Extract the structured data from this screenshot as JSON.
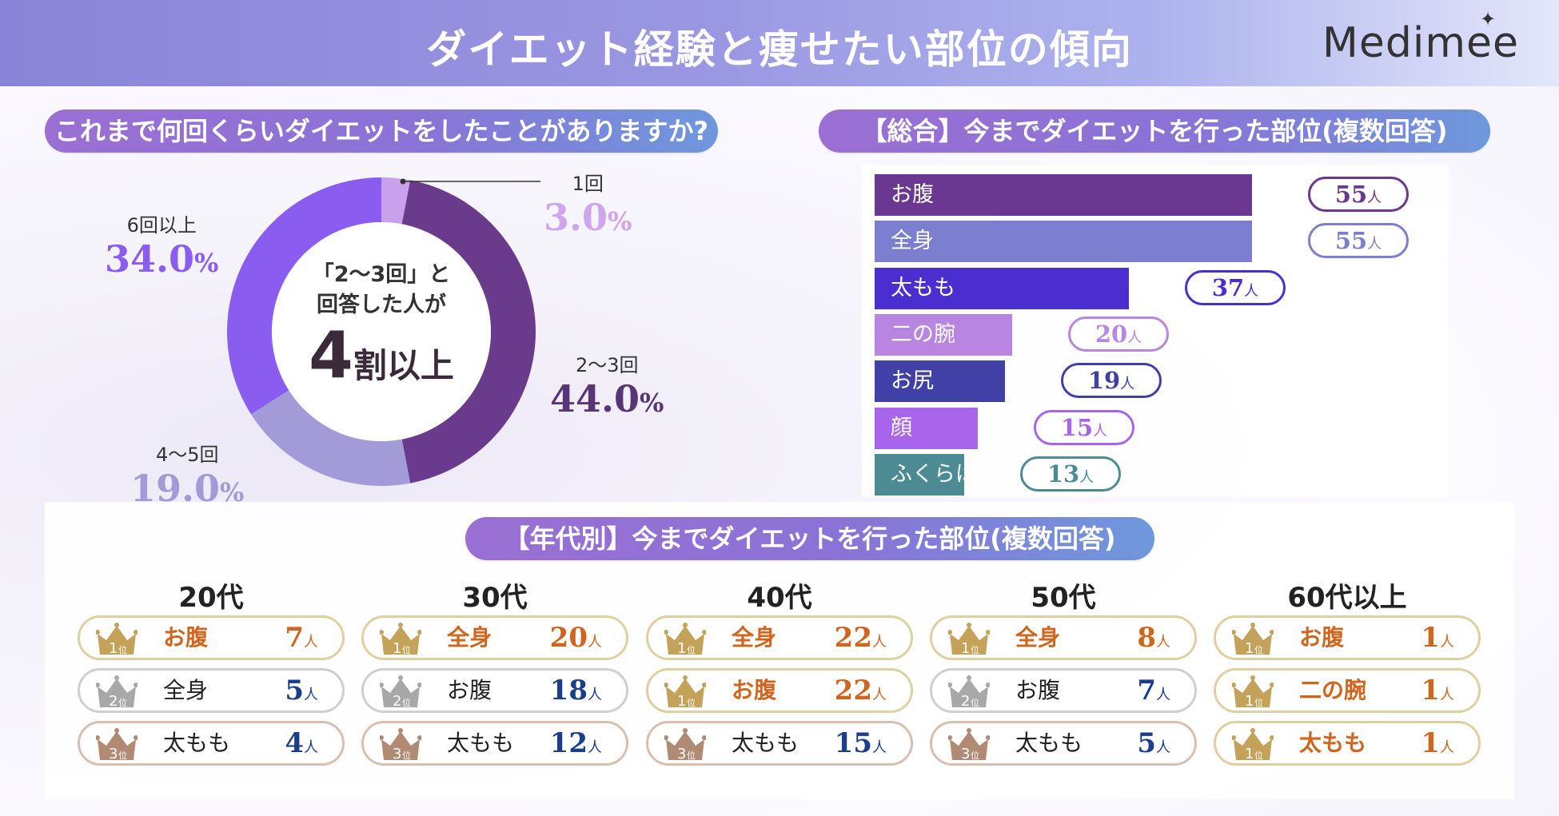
{
  "header": {
    "title": "ダイエット経験と痩せたい部位の傾向",
    "logo": "Medimee"
  },
  "q1": {
    "title": "これまで何回くらいダイエットをしたことがありますか?",
    "center_line1": "「2〜3回」と",
    "center_line2": "回答した人が",
    "center_big": "4",
    "center_big_suffix": "割以上",
    "slices": [
      {
        "label": "1回",
        "value": 3.0,
        "pct_text": "3.0",
        "color": "#c9a0ec"
      },
      {
        "label": "2〜3回",
        "value": 44.0,
        "pct_text": "44.0",
        "color": "#6a3a8c"
      },
      {
        "label": "4〜5回",
        "value": 19.0,
        "pct_text": "19.0",
        "color": "#a39ad8"
      },
      {
        "label": "6回以上",
        "value": 34.0,
        "pct_text": "34.0",
        "color": "#8a5cf0"
      }
    ],
    "unit": "%"
  },
  "q2": {
    "title": "【総合】今までダイエットを行った部位(複数回答)",
    "unit": "人"
  },
  "chart_data": [
    {
      "type": "pie",
      "categories": [
        "1回",
        "2〜3回",
        "4〜5回",
        "6回以上"
      ],
      "values": [
        3.0,
        44.0,
        19.0,
        34.0
      ]
    },
    {
      "type": "bar",
      "orientation": "horizontal",
      "categories": [
        "お腹",
        "全身",
        "太もも",
        "二の腕",
        "お尻",
        "顔",
        "ふくらはぎ"
      ],
      "values": [
        55,
        55,
        37,
        20,
        19,
        15,
        13
      ],
      "colors": [
        "#6a3891",
        "#7c7ed0",
        "#4a2ed0",
        "#b885e0",
        "#4040a6",
        "#a865ec",
        "#4c8b94"
      ]
    }
  ],
  "age": {
    "title": "【年代別】今までダイエットを行った部位(複数回答)",
    "rank_suffix": "位",
    "unit": "人",
    "groups": [
      {
        "name": "20代",
        "rows": [
          {
            "rank": "1",
            "part": "お腹",
            "count": "7"
          },
          {
            "rank": "2",
            "part": "全身",
            "count": "5"
          },
          {
            "rank": "3",
            "part": "太もも",
            "count": "4"
          }
        ]
      },
      {
        "name": "30代",
        "rows": [
          {
            "rank": "1",
            "part": "全身",
            "count": "20"
          },
          {
            "rank": "2",
            "part": "お腹",
            "count": "18"
          },
          {
            "rank": "3",
            "part": "太もも",
            "count": "12"
          }
        ]
      },
      {
        "name": "40代",
        "rows": [
          {
            "rank": "1",
            "part": "全身",
            "count": "22"
          },
          {
            "rank": "1",
            "part": "お腹",
            "count": "22"
          },
          {
            "rank": "3",
            "part": "太もも",
            "count": "15"
          }
        ]
      },
      {
        "name": "50代",
        "rows": [
          {
            "rank": "1",
            "part": "全身",
            "count": "8"
          },
          {
            "rank": "2",
            "part": "お腹",
            "count": "7"
          },
          {
            "rank": "3",
            "part": "太もも",
            "count": "5"
          }
        ]
      },
      {
        "name": "60代以上",
        "rows": [
          {
            "rank": "1",
            "part": "お腹",
            "count": "1"
          },
          {
            "rank": "1",
            "part": "二の腕",
            "count": "1"
          },
          {
            "rank": "1",
            "part": "太もも",
            "count": "1"
          }
        ]
      }
    ]
  },
  "colors": {
    "gold": "#c4a259",
    "silver": "#a8a8a8",
    "bronze": "#b08a72",
    "first_text": "#d0651e",
    "other_text": "#222222",
    "first_count": "#d0651e",
    "other_count": "#1a3e8c"
  }
}
